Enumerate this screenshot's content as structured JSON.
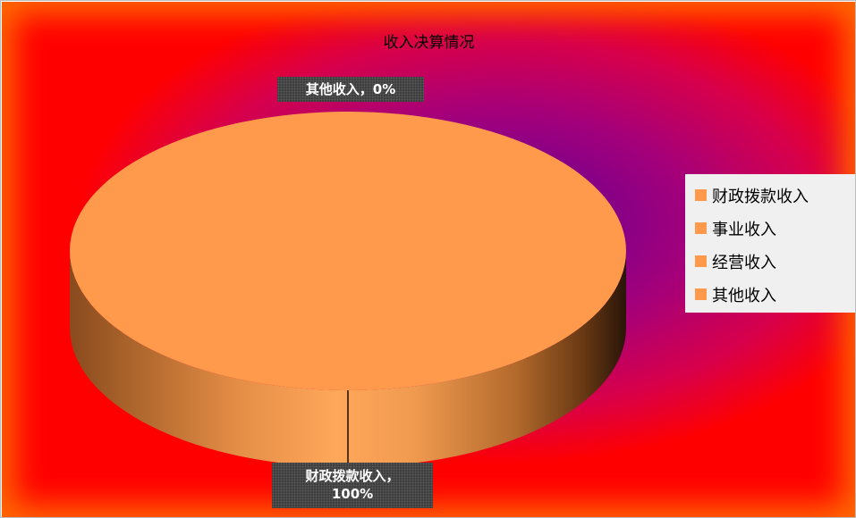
{
  "chart_data": {
    "type": "pie",
    "title": "收入决算情况",
    "slices": [
      {
        "name": "财政拨款收入",
        "value": 100,
        "label": "财政拨款收入，100%"
      },
      {
        "name": "事业收入",
        "value": 0,
        "label": ""
      },
      {
        "name": "经营收入",
        "value": 0,
        "label": ""
      },
      {
        "name": "其他收入",
        "value": 0,
        "label": "其他收入，0%"
      }
    ],
    "legend": [
      "财政拨款收入",
      "事业收入",
      "经营收入",
      "其他收入"
    ],
    "legend_placement": "right",
    "style": "3d",
    "colors": {
      "slice": "#ff9a4d",
      "label_bg": "#3e3e3e",
      "background_center": "#5a0098",
      "background_edge": "#ff0000"
    }
  },
  "labels": {
    "other": "其他收入，0%",
    "fiscal_line1": "财政拨款收入，",
    "fiscal_line2": "100%"
  }
}
